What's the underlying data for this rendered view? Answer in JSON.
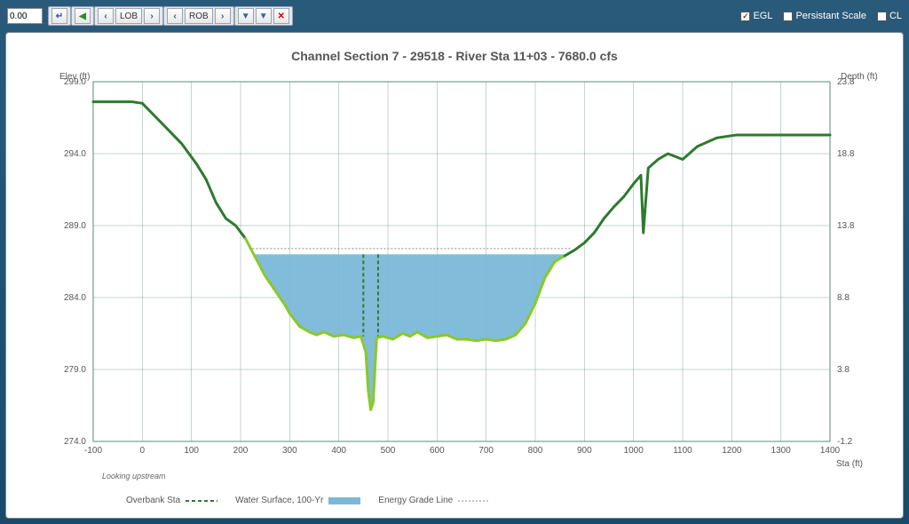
{
  "toolbar": {
    "value_input": "0.00",
    "groups": [
      [
        "↵"
      ],
      [
        "◀"
      ],
      [
        "‹",
        "LOB",
        "›"
      ],
      [
        "‹",
        "ROB",
        "›"
      ],
      [
        "▼",
        "▼",
        "✕"
      ]
    ],
    "checkboxes": [
      {
        "label": "EGL",
        "checked": true
      },
      {
        "label": "Persistant Scale",
        "checked": false
      },
      {
        "label": "CL",
        "checked": false
      }
    ]
  },
  "chart": {
    "title": "Channel Section 7 - 29518 - River Sta 11+03 - 7680.0 cfs",
    "xlabel": "Sta (ft)",
    "ylabel_left": "Elev (ft)",
    "ylabel_right": "Depth (ft)",
    "note": "Looking upstream",
    "xlim": [
      -100,
      1400
    ],
    "xtick_step": 100,
    "ylim_left": [
      274.0,
      299.0
    ],
    "ytick_step_left": 5.0,
    "yticks_right": [
      -1.2,
      3.8,
      8.8,
      13.8,
      18.8,
      23.8
    ],
    "grid_color": "#5a8a7a",
    "ground_color_dark": "#2d7a2d",
    "ground_color_light": "#8ac926",
    "ground_width": 3,
    "water_fill": "#7ab8d8",
    "egl_color": "#888888",
    "overbank_dash_color": "#2d7a2d",
    "background_color": "#ffffff",
    "water_level": 287.0,
    "egl_level": 287.4,
    "overbank_x": [
      450,
      480
    ],
    "ground": [
      [
        -100,
        297.6
      ],
      [
        -20,
        297.6
      ],
      [
        0,
        297.5
      ],
      [
        40,
        296.1
      ],
      [
        80,
        294.7
      ],
      [
        110,
        293.3
      ],
      [
        130,
        292.2
      ],
      [
        150,
        290.6
      ],
      [
        170,
        289.5
      ],
      [
        190,
        289.0
      ],
      [
        210,
        288.1
      ],
      [
        230,
        286.8
      ],
      [
        250,
        285.5
      ],
      [
        270,
        284.5
      ],
      [
        290,
        283.5
      ],
      [
        300,
        282.9
      ],
      [
        320,
        282.0
      ],
      [
        340,
        281.6
      ],
      [
        355,
        281.4
      ],
      [
        370,
        281.6
      ],
      [
        390,
        281.3
      ],
      [
        410,
        281.4
      ],
      [
        430,
        281.2
      ],
      [
        445,
        281.3
      ],
      [
        455,
        280.2
      ],
      [
        460,
        277.5
      ],
      [
        465,
        276.2
      ],
      [
        470,
        276.7
      ],
      [
        477,
        281.2
      ],
      [
        490,
        281.3
      ],
      [
        510,
        281.1
      ],
      [
        530,
        281.5
      ],
      [
        545,
        281.3
      ],
      [
        560,
        281.6
      ],
      [
        580,
        281.2
      ],
      [
        600,
        281.3
      ],
      [
        620,
        281.4
      ],
      [
        640,
        281.1
      ],
      [
        660,
        281.1
      ],
      [
        680,
        281.0
      ],
      [
        700,
        281.1
      ],
      [
        720,
        281.0
      ],
      [
        740,
        281.1
      ],
      [
        760,
        281.4
      ],
      [
        780,
        282.2
      ],
      [
        800,
        283.6
      ],
      [
        820,
        285.4
      ],
      [
        840,
        286.5
      ],
      [
        860,
        286.9
      ],
      [
        880,
        287.3
      ],
      [
        900,
        287.8
      ],
      [
        920,
        288.5
      ],
      [
        940,
        289.5
      ],
      [
        960,
        290.3
      ],
      [
        980,
        291.0
      ],
      [
        1000,
        291.9
      ],
      [
        1015,
        292.5
      ],
      [
        1020,
        288.5
      ],
      [
        1030,
        293.0
      ],
      [
        1050,
        293.6
      ],
      [
        1070,
        294.0
      ],
      [
        1100,
        293.6
      ],
      [
        1130,
        294.5
      ],
      [
        1170,
        295.1
      ],
      [
        1210,
        295.3
      ],
      [
        1250,
        295.3
      ],
      [
        1300,
        295.3
      ],
      [
        1350,
        295.3
      ],
      [
        1400,
        295.3
      ]
    ],
    "legend": {
      "overbank": "Overbank Sta",
      "water": "Water Surface, 100-Yr",
      "egl": "Energy Grade Line"
    }
  }
}
